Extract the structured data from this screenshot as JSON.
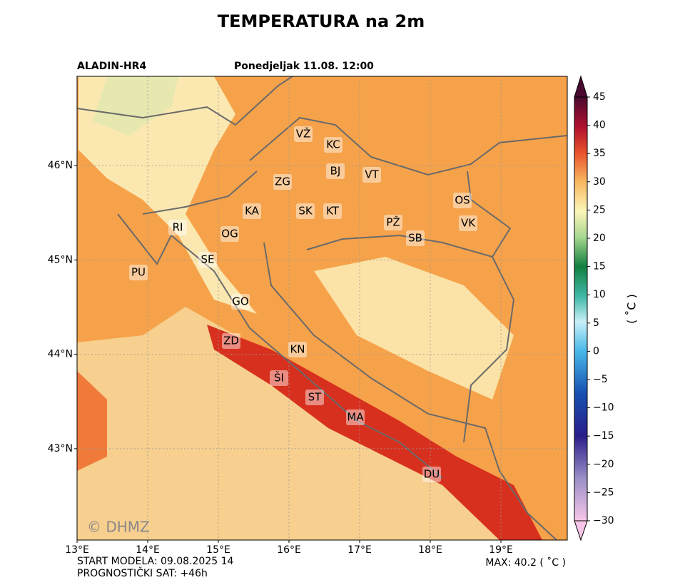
{
  "title": "TEMPERATURA na 2m",
  "model": "ALADIN-HR4",
  "valid_time": "Ponedjeljak 11.08. 12:00",
  "watermark": "© DHMZ",
  "map": {
    "xticks": [
      {
        "value": 13,
        "label": "13°E"
      },
      {
        "value": 14,
        "label": "14°E"
      },
      {
        "value": 15,
        "label": "15°E"
      },
      {
        "value": 16,
        "label": "16°E"
      },
      {
        "value": 17,
        "label": "17°E"
      },
      {
        "value": 18,
        "label": "18°E"
      },
      {
        "value": 19,
        "label": "19°E"
      }
    ],
    "yticks": [
      {
        "value": 43,
        "label": "43°N"
      },
      {
        "value": 44,
        "label": "44°N"
      },
      {
        "value": 45,
        "label": "45°N"
      },
      {
        "value": 46,
        "label": "46°N"
      }
    ],
    "cities": [
      "VŽ",
      "KC",
      "BJ",
      "VT",
      "ZG",
      "OS",
      "KA",
      "SK",
      "KT",
      "PŽ",
      "VK",
      "RI",
      "OG",
      "SB",
      "SE",
      "PU",
      "GO",
      "ZD",
      "KN",
      "ŠI",
      "ST",
      "MA",
      "DU"
    ]
  },
  "colorbar": {
    "label": "( ˚C )",
    "ticks": [
      {
        "value": -30,
        "label": "−30"
      },
      {
        "value": -25,
        "label": "−25"
      },
      {
        "value": -20,
        "label": "−20"
      },
      {
        "value": -15,
        "label": "−15"
      },
      {
        "value": -10,
        "label": "−10"
      },
      {
        "value": -5,
        "label": "−5"
      },
      0,
      5,
      10,
      15,
      20,
      25,
      30,
      35,
      40,
      45
    ]
  },
  "footer": {
    "start": "START MODELA: 09.08.2025 14",
    "lead": "PROGNOSTIČKI SAT: +46h",
    "max": "MAX: 40.2 ( ˚C )"
  }
}
